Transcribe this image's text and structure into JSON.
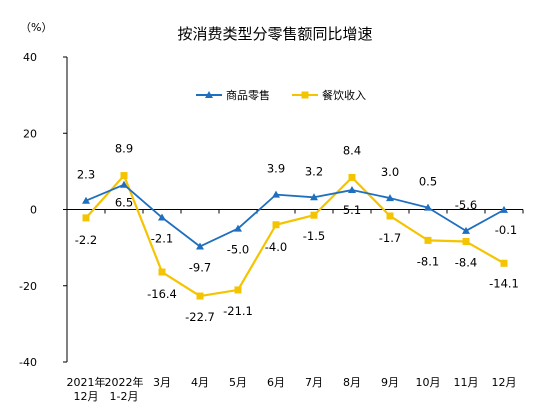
{
  "chart_data": {
    "type": "line",
    "title": "按消费类型分零售额同比增速",
    "y_unit": "（%）",
    "ylim": [
      -40,
      40
    ],
    "yticks": [
      40,
      20,
      0,
      -20,
      -40
    ],
    "categories": [
      [
        "2021年",
        "12月"
      ],
      [
        "2022年",
        "1-2月"
      ],
      [
        "3月"
      ],
      [
        "4月"
      ],
      [
        "5月"
      ],
      [
        "6月"
      ],
      [
        "7月"
      ],
      [
        "8月"
      ],
      [
        "9月"
      ],
      [
        "10月"
      ],
      [
        "11月"
      ],
      [
        "12月"
      ]
    ],
    "legend_position": "top-center",
    "grid": false,
    "series": [
      {
        "name": "商品零售",
        "color": "#1f6fbf",
        "marker": "triangle",
        "values": [
          2.3,
          6.5,
          -2.1,
          -9.7,
          -5.0,
          3.9,
          3.2,
          5.1,
          3.0,
          0.5,
          -5.6,
          -0.1
        ],
        "labels": [
          "2.3",
          "6.5",
          "-2.1",
          "-9.7",
          "-5.0",
          "3.9",
          "3.2",
          "5.1",
          "3.0",
          "0.5",
          "-5.6",
          "-0.1"
        ]
      },
      {
        "name": "餐饮收入",
        "color": "#f5c400",
        "marker": "square",
        "values": [
          -2.2,
          8.9,
          -16.4,
          -22.7,
          -21.1,
          -4.0,
          -1.5,
          8.4,
          -1.7,
          -8.1,
          -8.4,
          -14.1
        ],
        "labels": [
          "-2.2",
          "8.9",
          "-16.4",
          "-22.7",
          "-21.1",
          "-4.0",
          "-1.5",
          "8.4",
          "-1.7",
          "-8.1",
          "-8.4",
          "-14.1"
        ]
      }
    ]
  }
}
